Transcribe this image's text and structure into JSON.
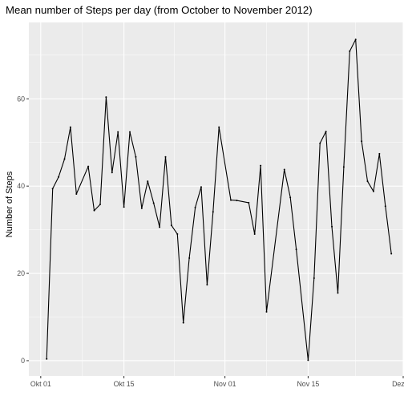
{
  "chart_data": {
    "type": "line",
    "title": "Mean number of Steps per day (from October to November 2012)",
    "xlabel": "",
    "ylabel": "Number of Steps",
    "x_tick_labels": [
      "Okt 01",
      "Okt 15",
      "Nov 01",
      "Nov 15",
      "Dez 01"
    ],
    "x_ticks": [
      "2012-10-01",
      "2012-10-15",
      "2012-11-01",
      "2012-11-15",
      "2012-12-01"
    ],
    "y_ticks": [
      0,
      20,
      40,
      60
    ],
    "xlim": [
      "2012-09-29",
      "2012-12-01"
    ],
    "ylim": [
      -3.5,
      77.5
    ],
    "grid": true,
    "colors": {
      "panel": "#ebebeb",
      "grid": "#ffffff",
      "line": "#000000"
    },
    "series": [
      {
        "x": [
          "2012-10-02",
          "2012-10-03",
          "2012-10-04",
          "2012-10-05",
          "2012-10-06",
          "2012-10-07",
          "2012-10-09",
          "2012-10-10",
          "2012-10-11",
          "2012-10-12",
          "2012-10-13",
          "2012-10-14",
          "2012-10-15",
          "2012-10-16",
          "2012-10-17",
          "2012-10-18",
          "2012-10-19",
          "2012-10-20",
          "2012-10-21",
          "2012-10-22",
          "2012-10-23",
          "2012-10-24",
          "2012-10-25",
          "2012-10-26",
          "2012-10-27",
          "2012-10-28",
          "2012-10-29",
          "2012-10-30",
          "2012-10-31",
          "2012-11-02",
          "2012-11-03",
          "2012-11-05",
          "2012-11-06",
          "2012-11-07",
          "2012-11-08",
          "2012-11-11",
          "2012-11-12",
          "2012-11-13",
          "2012-11-15",
          "2012-11-16",
          "2012-11-17",
          "2012-11-18",
          "2012-11-19",
          "2012-11-20",
          "2012-11-21",
          "2012-11-22",
          "2012-11-23",
          "2012-11-24",
          "2012-11-25",
          "2012-11-26",
          "2012-11-27",
          "2012-11-28",
          "2012-11-29"
        ],
        "values": [
          0.4,
          39.4,
          42.1,
          46.2,
          53.5,
          38.2,
          44.5,
          34.4,
          35.8,
          60.4,
          43.1,
          52.4,
          35.2,
          52.4,
          46.7,
          34.9,
          41.1,
          36.1,
          30.6,
          46.7,
          31.0,
          29.0,
          8.7,
          23.5,
          35.1,
          39.8,
          17.4,
          34.1,
          53.5,
          36.8,
          36.7,
          36.2,
          29.0,
          44.7,
          11.2,
          43.8,
          37.4,
          25.5,
          0.1,
          18.9,
          49.8,
          52.5,
          30.7,
          15.5,
          44.4,
          70.9,
          73.6,
          50.3,
          41.1,
          38.8,
          47.4,
          35.4,
          24.5
        ]
      }
    ]
  }
}
